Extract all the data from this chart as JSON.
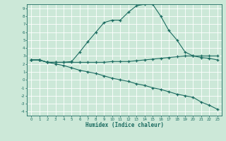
{
  "title": "",
  "xlabel": "Humidex (Indice chaleur)",
  "bg_color": "#cce8d8",
  "grid_color": "#b0d4c0",
  "line_color": "#1a6b60",
  "xlim": [
    -0.5,
    23.5
  ],
  "ylim": [
    -4.5,
    9.5
  ],
  "xticks": [
    0,
    1,
    2,
    3,
    4,
    5,
    6,
    7,
    8,
    9,
    10,
    11,
    12,
    13,
    14,
    15,
    16,
    17,
    18,
    19,
    20,
    21,
    22,
    23
  ],
  "yticks": [
    -4,
    -3,
    -2,
    -1,
    0,
    1,
    2,
    3,
    4,
    5,
    6,
    7,
    8,
    9
  ],
  "curve1_x": [
    0,
    1,
    2,
    3,
    4,
    5,
    6,
    7,
    8,
    9,
    10,
    11,
    12,
    13,
    14,
    15,
    16,
    17,
    18,
    19,
    20,
    21,
    22,
    23
  ],
  "curve1_y": [
    2.5,
    2.5,
    2.2,
    2.2,
    2.2,
    2.3,
    3.5,
    4.8,
    6.0,
    7.2,
    7.5,
    7.5,
    8.5,
    9.3,
    9.5,
    9.5,
    8.0,
    6.2,
    5.0,
    3.5,
    3.0,
    2.8,
    2.7,
    2.5
  ],
  "curve2_x": [
    0,
    1,
    2,
    3,
    4,
    5,
    6,
    7,
    8,
    9,
    10,
    11,
    12,
    13,
    14,
    15,
    16,
    17,
    18,
    19,
    20,
    21,
    22,
    23
  ],
  "curve2_y": [
    2.5,
    2.5,
    2.2,
    2.2,
    2.2,
    2.2,
    2.2,
    2.2,
    2.2,
    2.2,
    2.3,
    2.3,
    2.3,
    2.4,
    2.5,
    2.6,
    2.7,
    2.8,
    2.9,
    3.0,
    3.0,
    3.0,
    3.0,
    3.0
  ],
  "curve3_x": [
    0,
    1,
    2,
    3,
    4,
    5,
    6,
    7,
    8,
    9,
    10,
    11,
    12,
    13,
    14,
    15,
    16,
    17,
    18,
    19,
    20,
    21,
    22,
    23
  ],
  "curve3_y": [
    2.5,
    2.5,
    2.2,
    2.0,
    1.8,
    1.5,
    1.2,
    1.0,
    0.8,
    0.5,
    0.2,
    0.0,
    -0.2,
    -0.5,
    -0.7,
    -1.0,
    -1.2,
    -1.5,
    -1.8,
    -2.0,
    -2.2,
    -2.8,
    -3.2,
    -3.7
  ]
}
